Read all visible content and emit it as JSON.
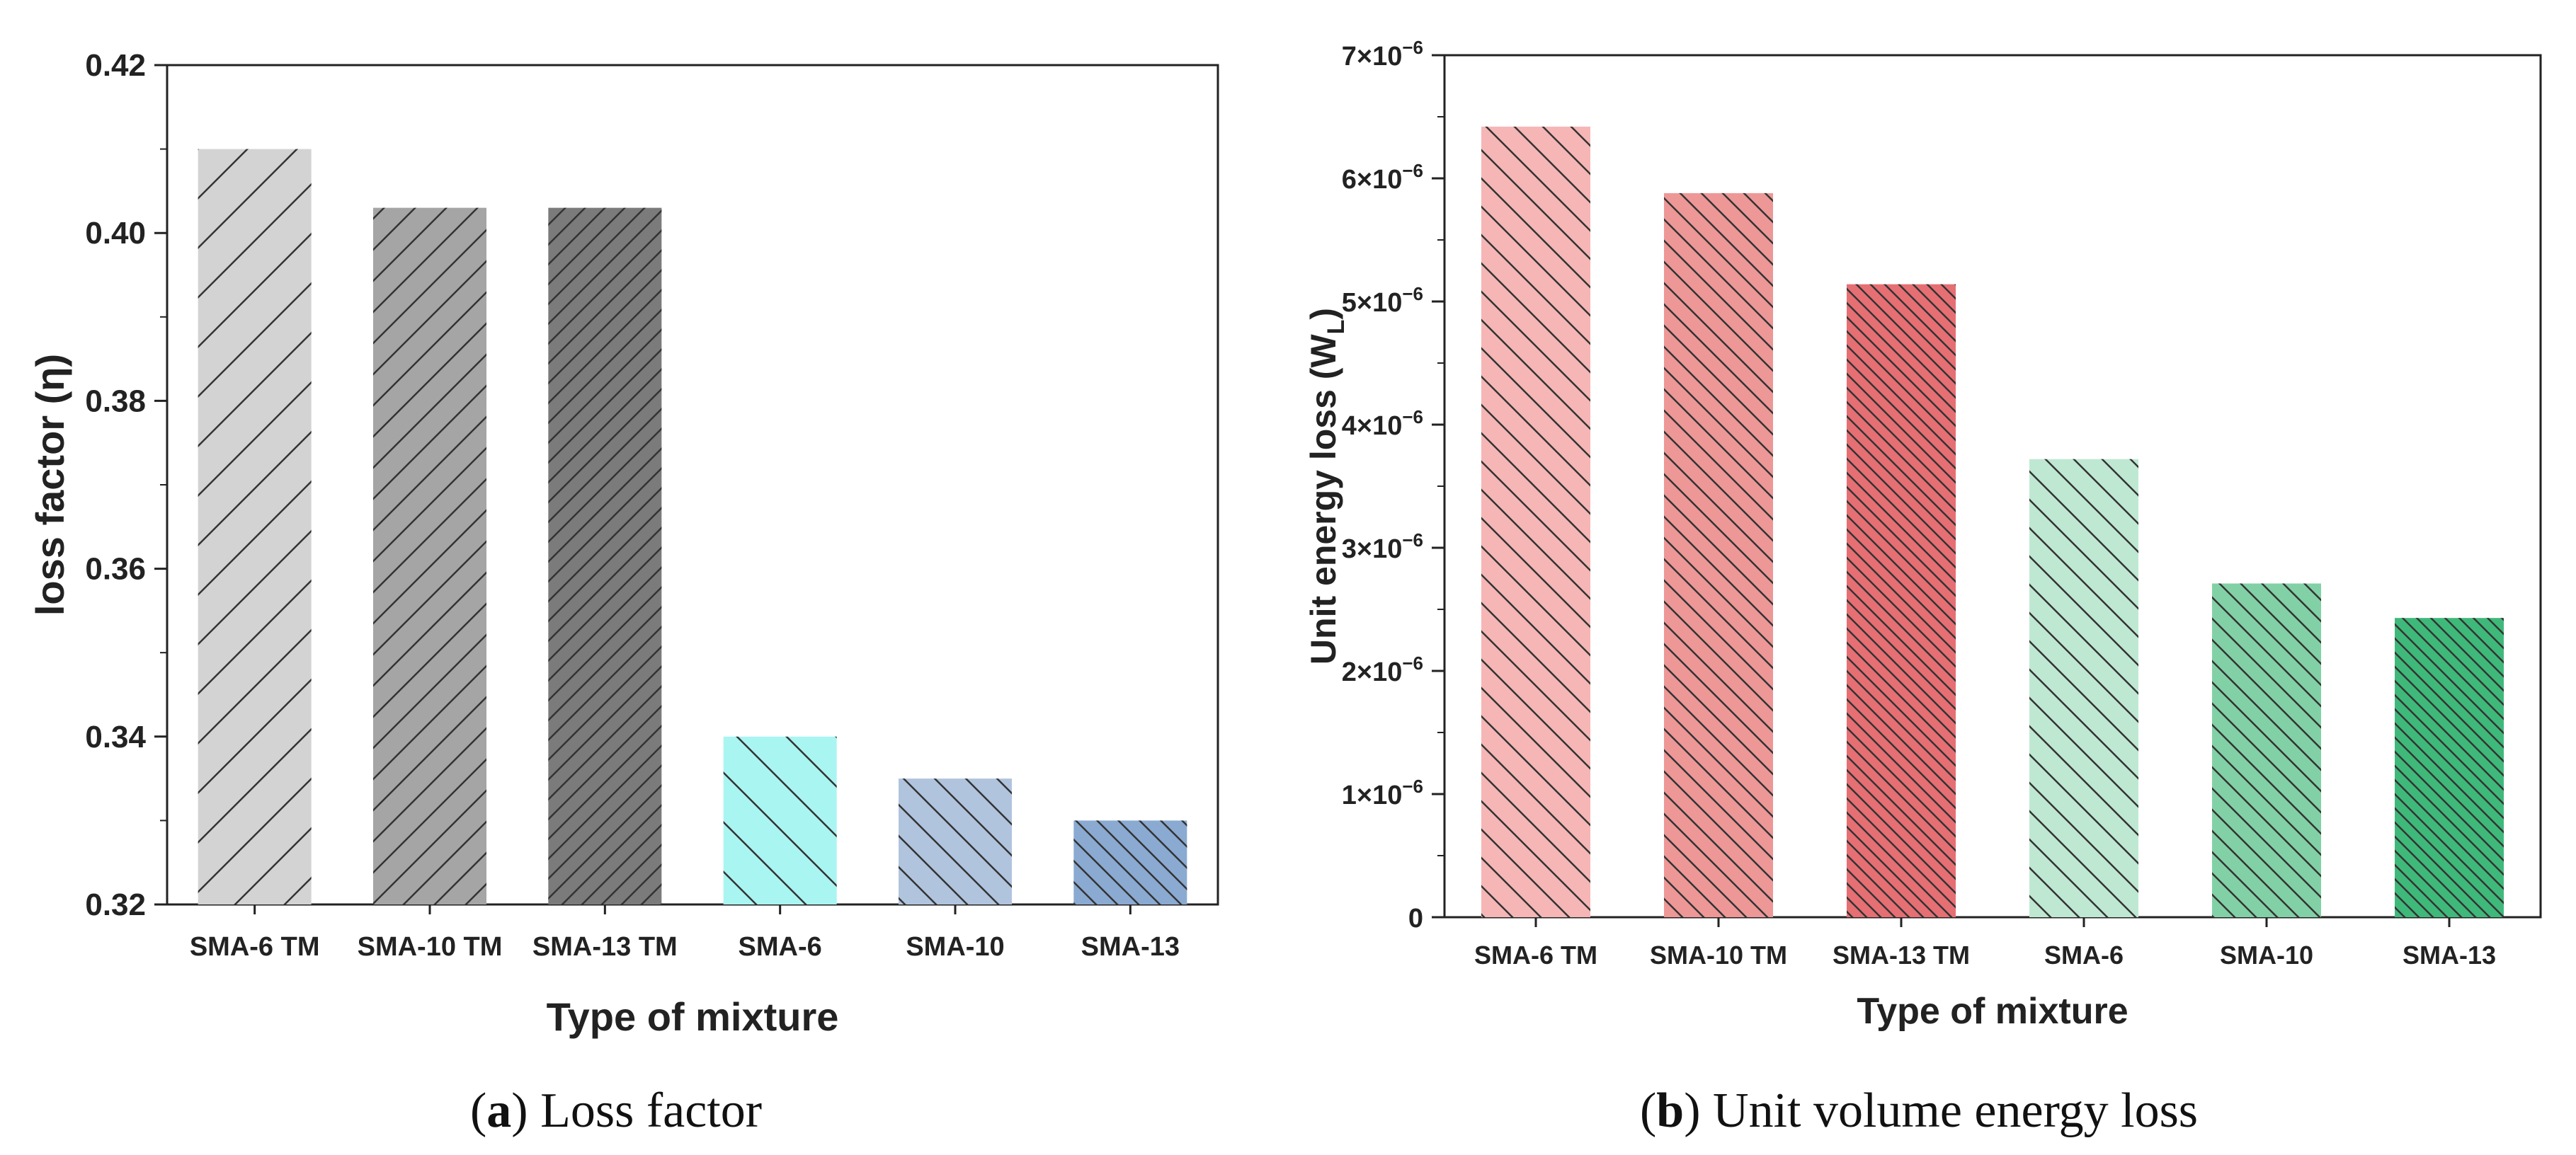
{
  "chart_data": [
    {
      "type": "bar",
      "panel_label": "a",
      "caption": "Loss factor",
      "categories": [
        "SMA-6 TM",
        "SMA-10 TM",
        "SMA-13 TM",
        "SMA-6",
        "SMA-10",
        "SMA-13"
      ],
      "values": [
        0.41,
        0.403,
        0.403,
        0.34,
        0.335,
        0.33
      ],
      "colors": [
        "#d3d3d3",
        "#a5a5a5",
        "#7b7b7b",
        "#a9f5f2",
        "#b0c4de",
        "#8aaad2"
      ],
      "xlabel": "Type of mixture",
      "ylabel": "loss factor (η)",
      "ylim": [
        0.32,
        0.42
      ],
      "yticks": [
        "0.32",
        "0.34",
        "0.36",
        "0.38",
        "0.40",
        "0.42"
      ]
    },
    {
      "type": "bar",
      "panel_label": "b",
      "caption": "Unit volume energy loss",
      "categories": [
        "SMA-6 TM",
        "SMA-10 TM",
        "SMA-13 TM",
        "SMA-6",
        "SMA-10",
        "SMA-13"
      ],
      "values": [
        6.42e-06,
        5.88e-06,
        5.14e-06,
        3.72e-06,
        2.71e-06,
        2.43e-06
      ],
      "colors": [
        "#f6b6b6",
        "#ee9797",
        "#e66f73",
        "#bfe8d3",
        "#82d1a6",
        "#3fb97a"
      ],
      "xlabel": "Type of mixture",
      "ylabel_main": "Unit energy loss (W",
      "ylabel_sub": "L",
      "ylabel_end": ")",
      "ylim": [
        0,
        7e-06
      ],
      "yticks": [
        {
          "value": 0,
          "mant": "0",
          "exp": ""
        },
        {
          "value": 1e-06,
          "mant": "1×10",
          "exp": "−6"
        },
        {
          "value": 2e-06,
          "mant": "2×10",
          "exp": "−6"
        },
        {
          "value": 3e-06,
          "mant": "3×10",
          "exp": "−6"
        },
        {
          "value": 4e-06,
          "mant": "4×10",
          "exp": "−6"
        },
        {
          "value": 5e-06,
          "mant": "5×10",
          "exp": "−6"
        },
        {
          "value": 6e-06,
          "mant": "6×10",
          "exp": "−6"
        },
        {
          "value": 7e-06,
          "mant": "7×10",
          "exp": "−6"
        }
      ]
    }
  ]
}
